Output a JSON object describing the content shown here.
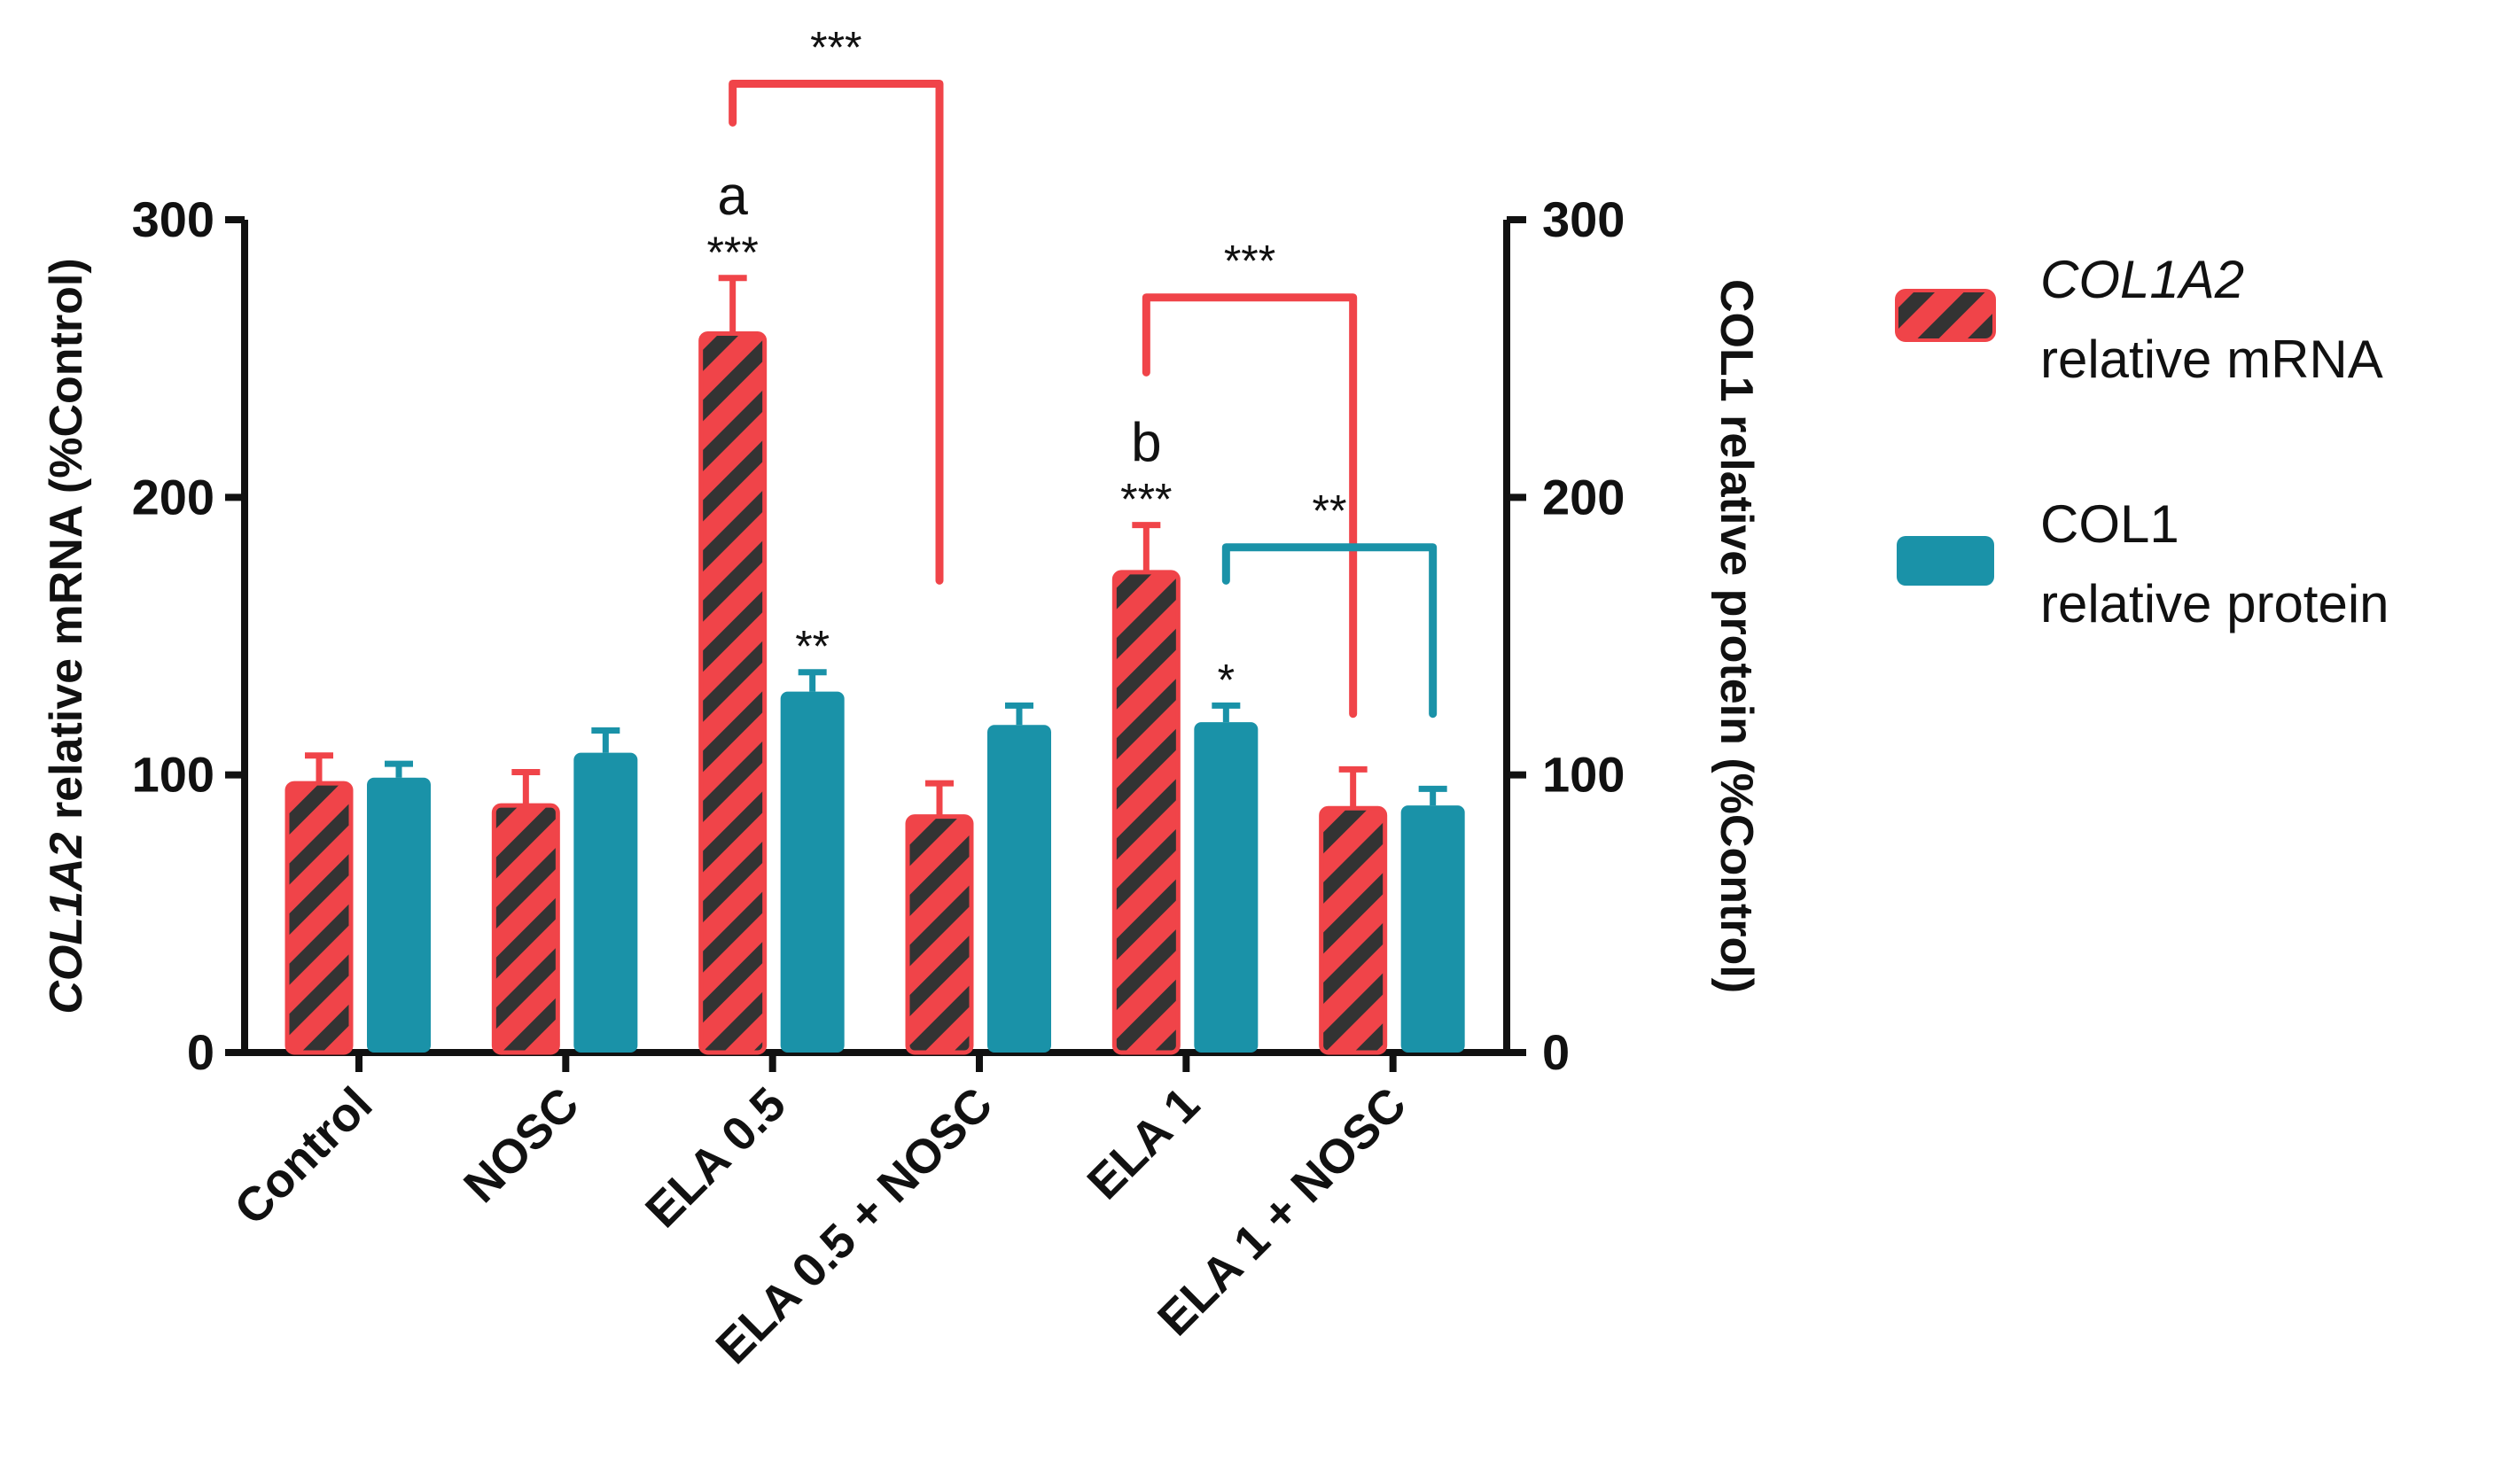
{
  "chart_data": {
    "type": "bar",
    "categories": [
      "Control",
      "NOSC",
      "ELA 0.5",
      "ELA 0.5 + NOSC",
      "ELA 1",
      "ELA 1 + NOSC"
    ],
    "series": [
      {
        "name": "COL1A2 relative mRNA",
        "legend_line1": "COL1A2",
        "legend_line2": "relative mRNA",
        "axis": "left",
        "color": "#f04449",
        "hatch_color": "#333333",
        "values": [
          97,
          89,
          259,
          85,
          173,
          88
        ],
        "errors": [
          10,
          12,
          20,
          12,
          17,
          14
        ]
      },
      {
        "name": "COL1 relative protein",
        "legend_line1": "COL1",
        "legend_line2": "relative protein",
        "axis": "right",
        "color": "#1a92a8",
        "values": [
          99,
          108,
          130,
          118,
          119,
          89
        ],
        "errors": [
          5,
          8,
          7,
          7,
          6,
          6
        ]
      }
    ],
    "ylim": [
      0,
      300
    ],
    "yticks": [
      0,
      100,
      200,
      300
    ],
    "ylabel_italic": "COL1A2",
    "ylabel_rest": " relative mRNA (%Control)",
    "y2label": "COL1 relative protein (%Control)",
    "bar_annotations": [
      {
        "category": 2,
        "series": 0,
        "stars": "***",
        "letter": "a"
      },
      {
        "category": 2,
        "series": 1,
        "stars": "**",
        "letter": ""
      },
      {
        "category": 4,
        "series": 0,
        "stars": "***",
        "letter": "b"
      },
      {
        "category": 4,
        "series": 1,
        "stars": "*",
        "letter": ""
      }
    ],
    "comparison_brackets": [
      {
        "from_category": 2,
        "to_category": 3,
        "series": 0,
        "level": 349,
        "from_end": 335,
        "to_end": 170,
        "stars": "***"
      },
      {
        "from_category": 4,
        "to_category": 5,
        "series": 0,
        "level": 272,
        "from_end": 245,
        "to_end": 122,
        "stars": "***"
      },
      {
        "from_category": 4,
        "to_category": 5,
        "series": 1,
        "level": 182,
        "from_end": 170,
        "to_end": 122,
        "stars": "**"
      }
    ]
  }
}
